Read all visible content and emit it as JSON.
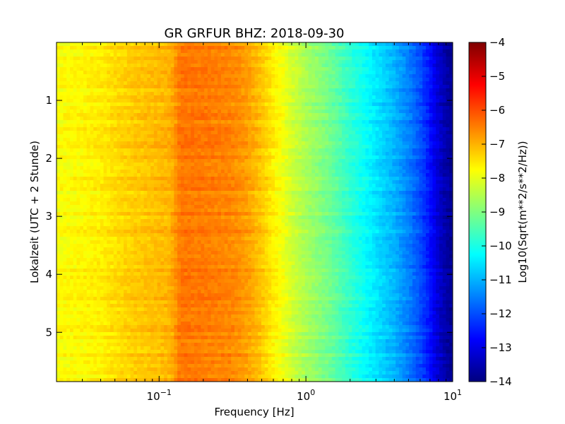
{
  "chart_data": {
    "type": "heatmap",
    "title": "GR GRFUR BHZ: 2018-09-30",
    "xlabel": "Frequency [Hz]",
    "ylabel": "Lokalzeit (UTC + 2 Stunde)",
    "xscale": "log",
    "xlim": [
      0.02,
      10
    ],
    "ylim": [
      5.85,
      0
    ],
    "y_inverted": true,
    "xticks": [
      {
        "value": 0.1,
        "base": "10",
        "exp": "−1"
      },
      {
        "value": 1,
        "base": "10",
        "exp": "0"
      },
      {
        "value": 10,
        "base": "10",
        "exp": "1"
      }
    ],
    "yticks": [
      {
        "value": 1,
        "label": "1"
      },
      {
        "value": 2,
        "label": "2"
      },
      {
        "value": 3,
        "label": "3"
      },
      {
        "value": 4,
        "label": "4"
      },
      {
        "value": 5,
        "label": "5"
      }
    ],
    "colorbar": {
      "label": "Log10(Sqrt(m**2/s**2/Hz))",
      "range": [
        -14,
        -4
      ],
      "colormap": "jet",
      "ticks": [
        "−4",
        "−5",
        "−6",
        "−7",
        "−8",
        "−9",
        "−10",
        "−11",
        "−12",
        "−13",
        "−14"
      ]
    },
    "profile_freq": [
      0.02,
      0.04,
      0.06,
      0.12,
      0.14,
      0.2,
      0.3,
      0.4,
      0.5,
      0.6,
      0.7,
      0.8,
      1.0,
      1.5,
      2.0,
      3.0,
      4.0,
      5.0,
      6.0,
      7.0,
      8.0,
      9.0,
      10.0
    ],
    "profile_value": [
      -7.8,
      -7.6,
      -7.3,
      -7.0,
      -6.4,
      -6.45,
      -6.55,
      -6.8,
      -7.2,
      -7.6,
      -7.9,
      -8.2,
      -8.6,
      -9.2,
      -9.8,
      -10.5,
      -11.0,
      -11.5,
      -12.0,
      -12.6,
      -13.2,
      -13.6,
      -13.8
    ],
    "grid": false
  }
}
